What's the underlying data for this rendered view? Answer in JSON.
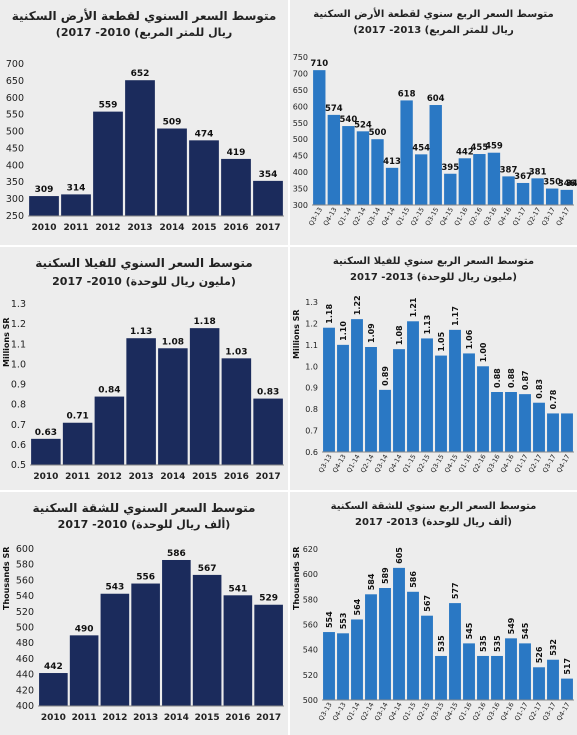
{
  "charts": [
    {
      "title": "متوسط السعر السنوي لقطعة الأرض السكنية",
      "subtitle": "ريال للمتر المربع) 2010- 2017)",
      "chart_data": {
        "type": "bar",
        "categories": [
          "2010",
          "2011",
          "2012",
          "2013",
          "2014",
          "2015",
          "2016",
          "2017"
        ],
        "values": [
          309,
          314,
          559,
          652,
          509,
          474,
          419,
          354
        ],
        "ylim": [
          250,
          700
        ],
        "yticks": [
          250,
          300,
          350,
          400,
          450,
          500,
          550,
          600,
          650,
          700
        ],
        "ylabel": "",
        "bar_color": "#1b2b5c"
      }
    },
    {
      "title": "متوسط السعر الربع سنوي لقطعة الأرض السكنية",
      "subtitle": "ريال للمتر المربع) 2013- 2017)",
      "chart_data": {
        "type": "bar",
        "categories": [
          "Q3-13",
          "Q4-13",
          "Q1-14",
          "Q2-14",
          "Q3-14",
          "Q4-14",
          "Q1-15",
          "Q2-15",
          "Q3-15",
          "Q4-15",
          "Q1-16",
          "Q2-16",
          "Q3-16",
          "Q4-16",
          "Q1-17",
          "Q2-17",
          "Q3-17",
          "Q4-17"
        ],
        "values": [
          710,
          574,
          540,
          524,
          500,
          413,
          618,
          454,
          604,
          395,
          442,
          455,
          459,
          387,
          367,
          381,
          350,
          346
        ],
        "extra_value": "344",
        "ylim": [
          300,
          750
        ],
        "yticks": [
          300,
          350,
          400,
          450,
          500,
          550,
          600,
          650,
          700,
          750
        ],
        "ylabel": "",
        "bar_color": "#2a78c4"
      }
    },
    {
      "title": "متوسط السعر السنوي للفيلا السكنية",
      "subtitle": "(مليون ريال للوحدة) 2010- 2017",
      "chart_data": {
        "type": "bar",
        "categories": [
          "2010",
          "2011",
          "2012",
          "2013",
          "2014",
          "2015",
          "2016",
          "2017"
        ],
        "values": [
          0.63,
          0.71,
          0.84,
          1.13,
          1.08,
          1.18,
          1.03,
          0.83
        ],
        "labels": [
          "0.63",
          "0.71",
          "0.84",
          "1.13",
          "1.08",
          "1.18",
          "1.03",
          "0.83"
        ],
        "ylim": [
          0.5,
          1.3
        ],
        "yticks": [
          "0.5",
          "0.6",
          "0.7",
          "0.8",
          "0.9",
          "1.0",
          "1.1",
          "1.2",
          "1.3"
        ],
        "ylabel": "Millions SR",
        "bar_color": "#1b2b5c"
      }
    },
    {
      "title": "متوسط السعر الربع سنوي للفيلا السكنية",
      "subtitle": "(مليون ريال للوحدة) 2013- 2017",
      "chart_data": {
        "type": "bar",
        "categories": [
          "Q3-13",
          "Q4-13",
          "Q1-14",
          "Q2-14",
          "Q3-14",
          "Q4-14",
          "Q1-15",
          "Q2-15",
          "Q3-15",
          "Q4-15",
          "Q1-16",
          "Q2-16",
          "Q3-16",
          "Q4-16",
          "Q1-17",
          "Q2-17",
          "Q3-17",
          "Q4-17"
        ],
        "values": [
          1.18,
          1.1,
          1.22,
          1.09,
          0.89,
          1.08,
          1.21,
          1.13,
          1.05,
          1.17,
          1.06,
          1.0,
          0.88,
          0.88,
          0.87,
          0.83,
          0.78,
          0.78
        ],
        "labels": [
          "1.18",
          "1.10",
          "1.22",
          "1.09",
          "0.89",
          "1.08",
          "1.21",
          "1.13",
          "1.05",
          "1.17",
          "1.06",
          "1.00",
          "0.88",
          "0.88",
          "0.87",
          "0.83",
          "0.78",
          ""
        ],
        "ylim": [
          0.6,
          1.3
        ],
        "yticks": [
          "0.6",
          "0.7",
          "0.8",
          "0.9",
          "1.0",
          "1.1",
          "1.2",
          "1.3"
        ],
        "ylabel": "Millions SR",
        "bar_color": "#2a78c4"
      }
    },
    {
      "title": "متوسط السعر السنوي للشقة السكنية",
      "subtitle": "(ألف ريال للوحدة) 2010- 2017",
      "chart_data": {
        "type": "bar",
        "categories": [
          "2010",
          "2011",
          "2012",
          "2013",
          "2014",
          "2015",
          "2016",
          "2017"
        ],
        "values": [
          442,
          490,
          543,
          556,
          586,
          567,
          541,
          529
        ],
        "ylim": [
          400,
          600
        ],
        "yticks": [
          400,
          420,
          440,
          460,
          480,
          500,
          520,
          540,
          560,
          580,
          600
        ],
        "ylabel": "Thousands SR",
        "bar_color": "#1b2b5c"
      }
    },
    {
      "title": "متوسط السعر الربع سنوي للشقة السكنية",
      "subtitle": "(ألف ريال للوحدة) 2013- 2017",
      "chart_data": {
        "type": "bar",
        "categories": [
          "Q3-13",
          "Q4-13",
          "Q1-14",
          "Q2-14",
          "Q3-14",
          "Q4-14",
          "Q1-15",
          "Q2-15",
          "Q3-15",
          "Q4-15",
          "Q1-16",
          "Q2-16",
          "Q3-16",
          "Q4-16",
          "Q1-17",
          "Q2-17",
          "Q3-17",
          "Q4-17"
        ],
        "values": [
          554,
          553,
          564,
          584,
          589,
          605,
          586,
          567,
          535,
          577,
          545,
          535,
          535,
          549,
          545,
          526,
          532,
          517
        ],
        "ylim": [
          500,
          620
        ],
        "yticks": [
          500,
          520,
          540,
          560,
          580,
          600,
          620
        ],
        "ylabel": "Thousands SR",
        "bar_color": "#2a78c4"
      }
    }
  ]
}
